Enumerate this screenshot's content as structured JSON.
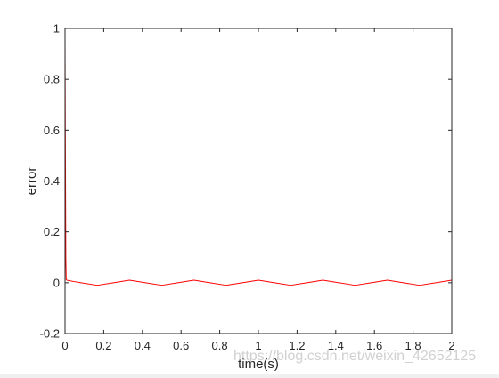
{
  "chart_data": {
    "type": "line",
    "title": "",
    "xlabel": "time(s)",
    "ylabel": "error",
    "xlim": [
      0,
      2
    ],
    "ylim": [
      -0.2,
      1
    ],
    "xticks": [
      0,
      0.2,
      0.4,
      0.6,
      0.8,
      1,
      1.2,
      1.4,
      1.6,
      1.8,
      2
    ],
    "xtick_labels": [
      "0",
      "0.2",
      "0.4",
      "0.6",
      "0.8",
      "1",
      "1.2",
      "1.4",
      "1.6",
      "1.8",
      "2"
    ],
    "yticks": [
      -0.2,
      0,
      0.2,
      0.4,
      0.6,
      0.8,
      1
    ],
    "ytick_labels": [
      "-0.2",
      "0",
      "0.2",
      "0.4",
      "0.6",
      "0.8",
      "1"
    ],
    "grid": false,
    "line_color": "#ff0000",
    "series": [
      {
        "x": [
          0,
          0.002,
          0.004,
          0.006,
          0.01,
          0.02,
          0.05,
          0.0833,
          0.1667,
          0.25,
          0.3333,
          0.4167,
          0.5,
          0.5833,
          0.6667,
          0.75,
          0.8333,
          0.9167,
          1.0,
          1.0833,
          1.1667,
          1.25,
          1.3333,
          1.4167,
          1.5,
          1.5833,
          1.6667,
          1.75,
          1.8333,
          1.9167,
          2.0
        ],
        "y": [
          0.95,
          0.5,
          0.1,
          0.012,
          0.01,
          0.008,
          0.004,
          0.0,
          -0.01,
          0.0,
          0.01,
          0.0,
          -0.01,
          0.0,
          0.01,
          0.0,
          -0.01,
          0.0,
          0.01,
          0.0,
          -0.01,
          0.0,
          0.01,
          0.0,
          -0.01,
          0.0,
          0.01,
          0.0,
          -0.01,
          0.0,
          0.01
        ]
      }
    ]
  },
  "watermark": "https://blog.csdn.net/weixin_42652125"
}
